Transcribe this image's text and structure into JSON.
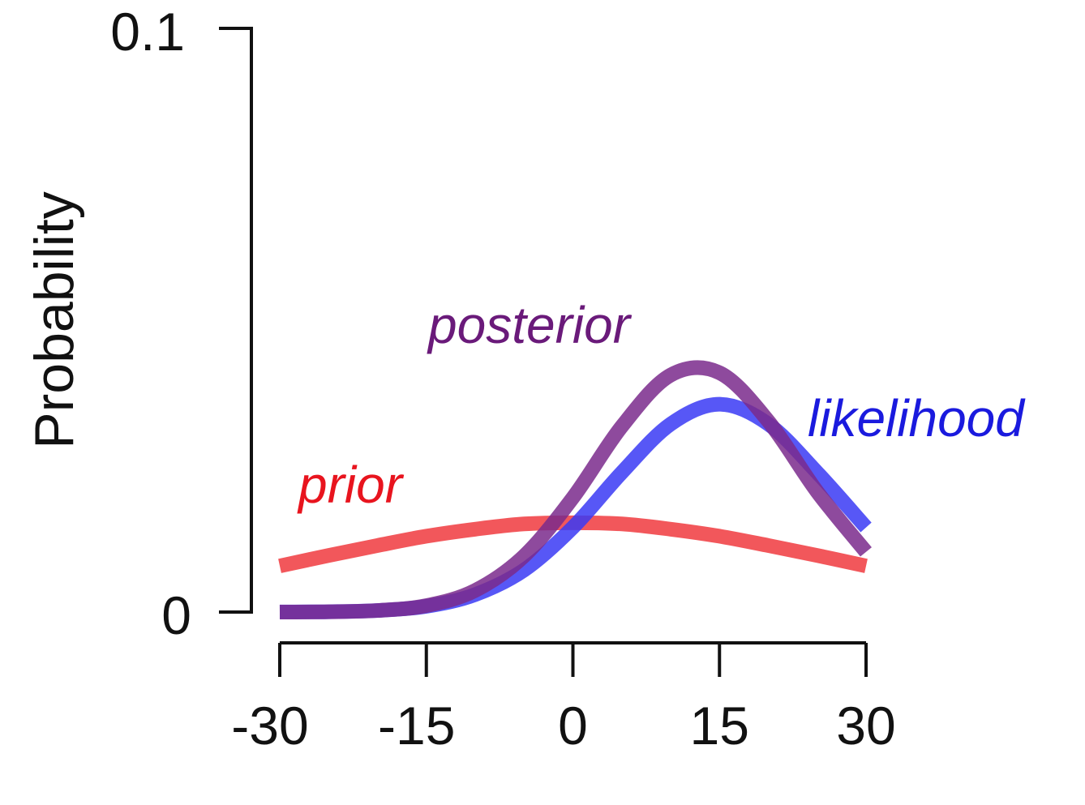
{
  "chart_data": {
    "type": "line",
    "title": "",
    "xlabel": "",
    "ylabel": "Probability",
    "xlim": [
      -30,
      30
    ],
    "ylim": [
      0,
      0.1
    ],
    "xticks": [
      "-30",
      "-15",
      "0",
      "15",
      "30"
    ],
    "yticks": [
      "0",
      "0.1"
    ],
    "grid": false,
    "legend": "inline labels",
    "x": [
      -30,
      -25,
      -20,
      -15,
      -10,
      -5,
      0,
      5,
      10,
      15,
      20,
      25,
      30
    ],
    "series": [
      {
        "name": "prior",
        "color": "#f03a3e",
        "values": [
          0.0079,
          0.0097,
          0.0114,
          0.013,
          0.0142,
          0.0151,
          0.0153,
          0.0151,
          0.0142,
          0.013,
          0.0114,
          0.0097,
          0.0079
        ]
      },
      {
        "name": "likelihood",
        "color": "#3a3af5",
        "values": [
          1e-05,
          6e-05,
          0.00027,
          0.00099,
          0.003,
          0.0072,
          0.0145,
          0.0239,
          0.0322,
          0.0356,
          0.0322,
          0.0239,
          0.0145
        ]
      },
      {
        "name": "posterior",
        "color": "#7a2a8c",
        "values": [
          0.0,
          5e-05,
          0.00027,
          0.0011,
          0.0037,
          0.0096,
          0.0196,
          0.0318,
          0.0406,
          0.041,
          0.0327,
          0.0206,
          0.0103
        ]
      }
    ],
    "label_colors": {
      "prior": "#e8141e",
      "likelihood": "#1a1ade",
      "posterior": "#6a1a7a"
    }
  }
}
